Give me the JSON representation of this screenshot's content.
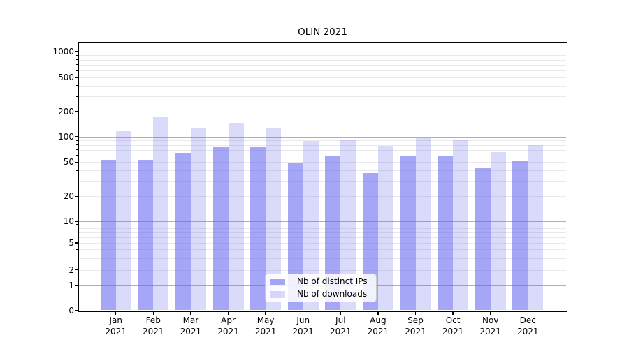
{
  "title": "OLIN 2021",
  "chart_data": {
    "type": "bar",
    "title": "OLIN 2021",
    "y_scale": "log-like with zero baseline",
    "categories": [
      "Jan",
      "Feb",
      "Mar",
      "Apr",
      "May",
      "Jun",
      "Jul",
      "Aug",
      "Sep",
      "Oct",
      "Nov",
      "Dec"
    ],
    "year_label": "2021",
    "series": [
      {
        "name": "Nb of distinct IPs",
        "color": "rgba(102,102,240,0.58)",
        "values": [
          53,
          53,
          65,
          75,
          76,
          49,
          59,
          37,
          60,
          60,
          43,
          52
        ]
      },
      {
        "name": "Nb of downloads",
        "color": "rgba(102,102,240,0.24)",
        "values": [
          115,
          170,
          125,
          147,
          127,
          88,
          92,
          78,
          96,
          90,
          66,
          80
        ]
      }
    ],
    "y_ticks": [
      1000,
      500,
      200,
      100,
      50,
      20,
      10,
      5,
      2,
      1,
      0
    ],
    "ylim": [
      0,
      1200
    ],
    "grid": "horizontal, major at 1/10/100/1000, minor log subdivisions",
    "legend_position": "lower center inside plot"
  },
  "colors": {
    "bar_base": "#6666f0",
    "major_grid": "#b0b0b0",
    "minor_grid": "#e9e9e9",
    "axis": "#000000",
    "background": "#ffffff"
  }
}
